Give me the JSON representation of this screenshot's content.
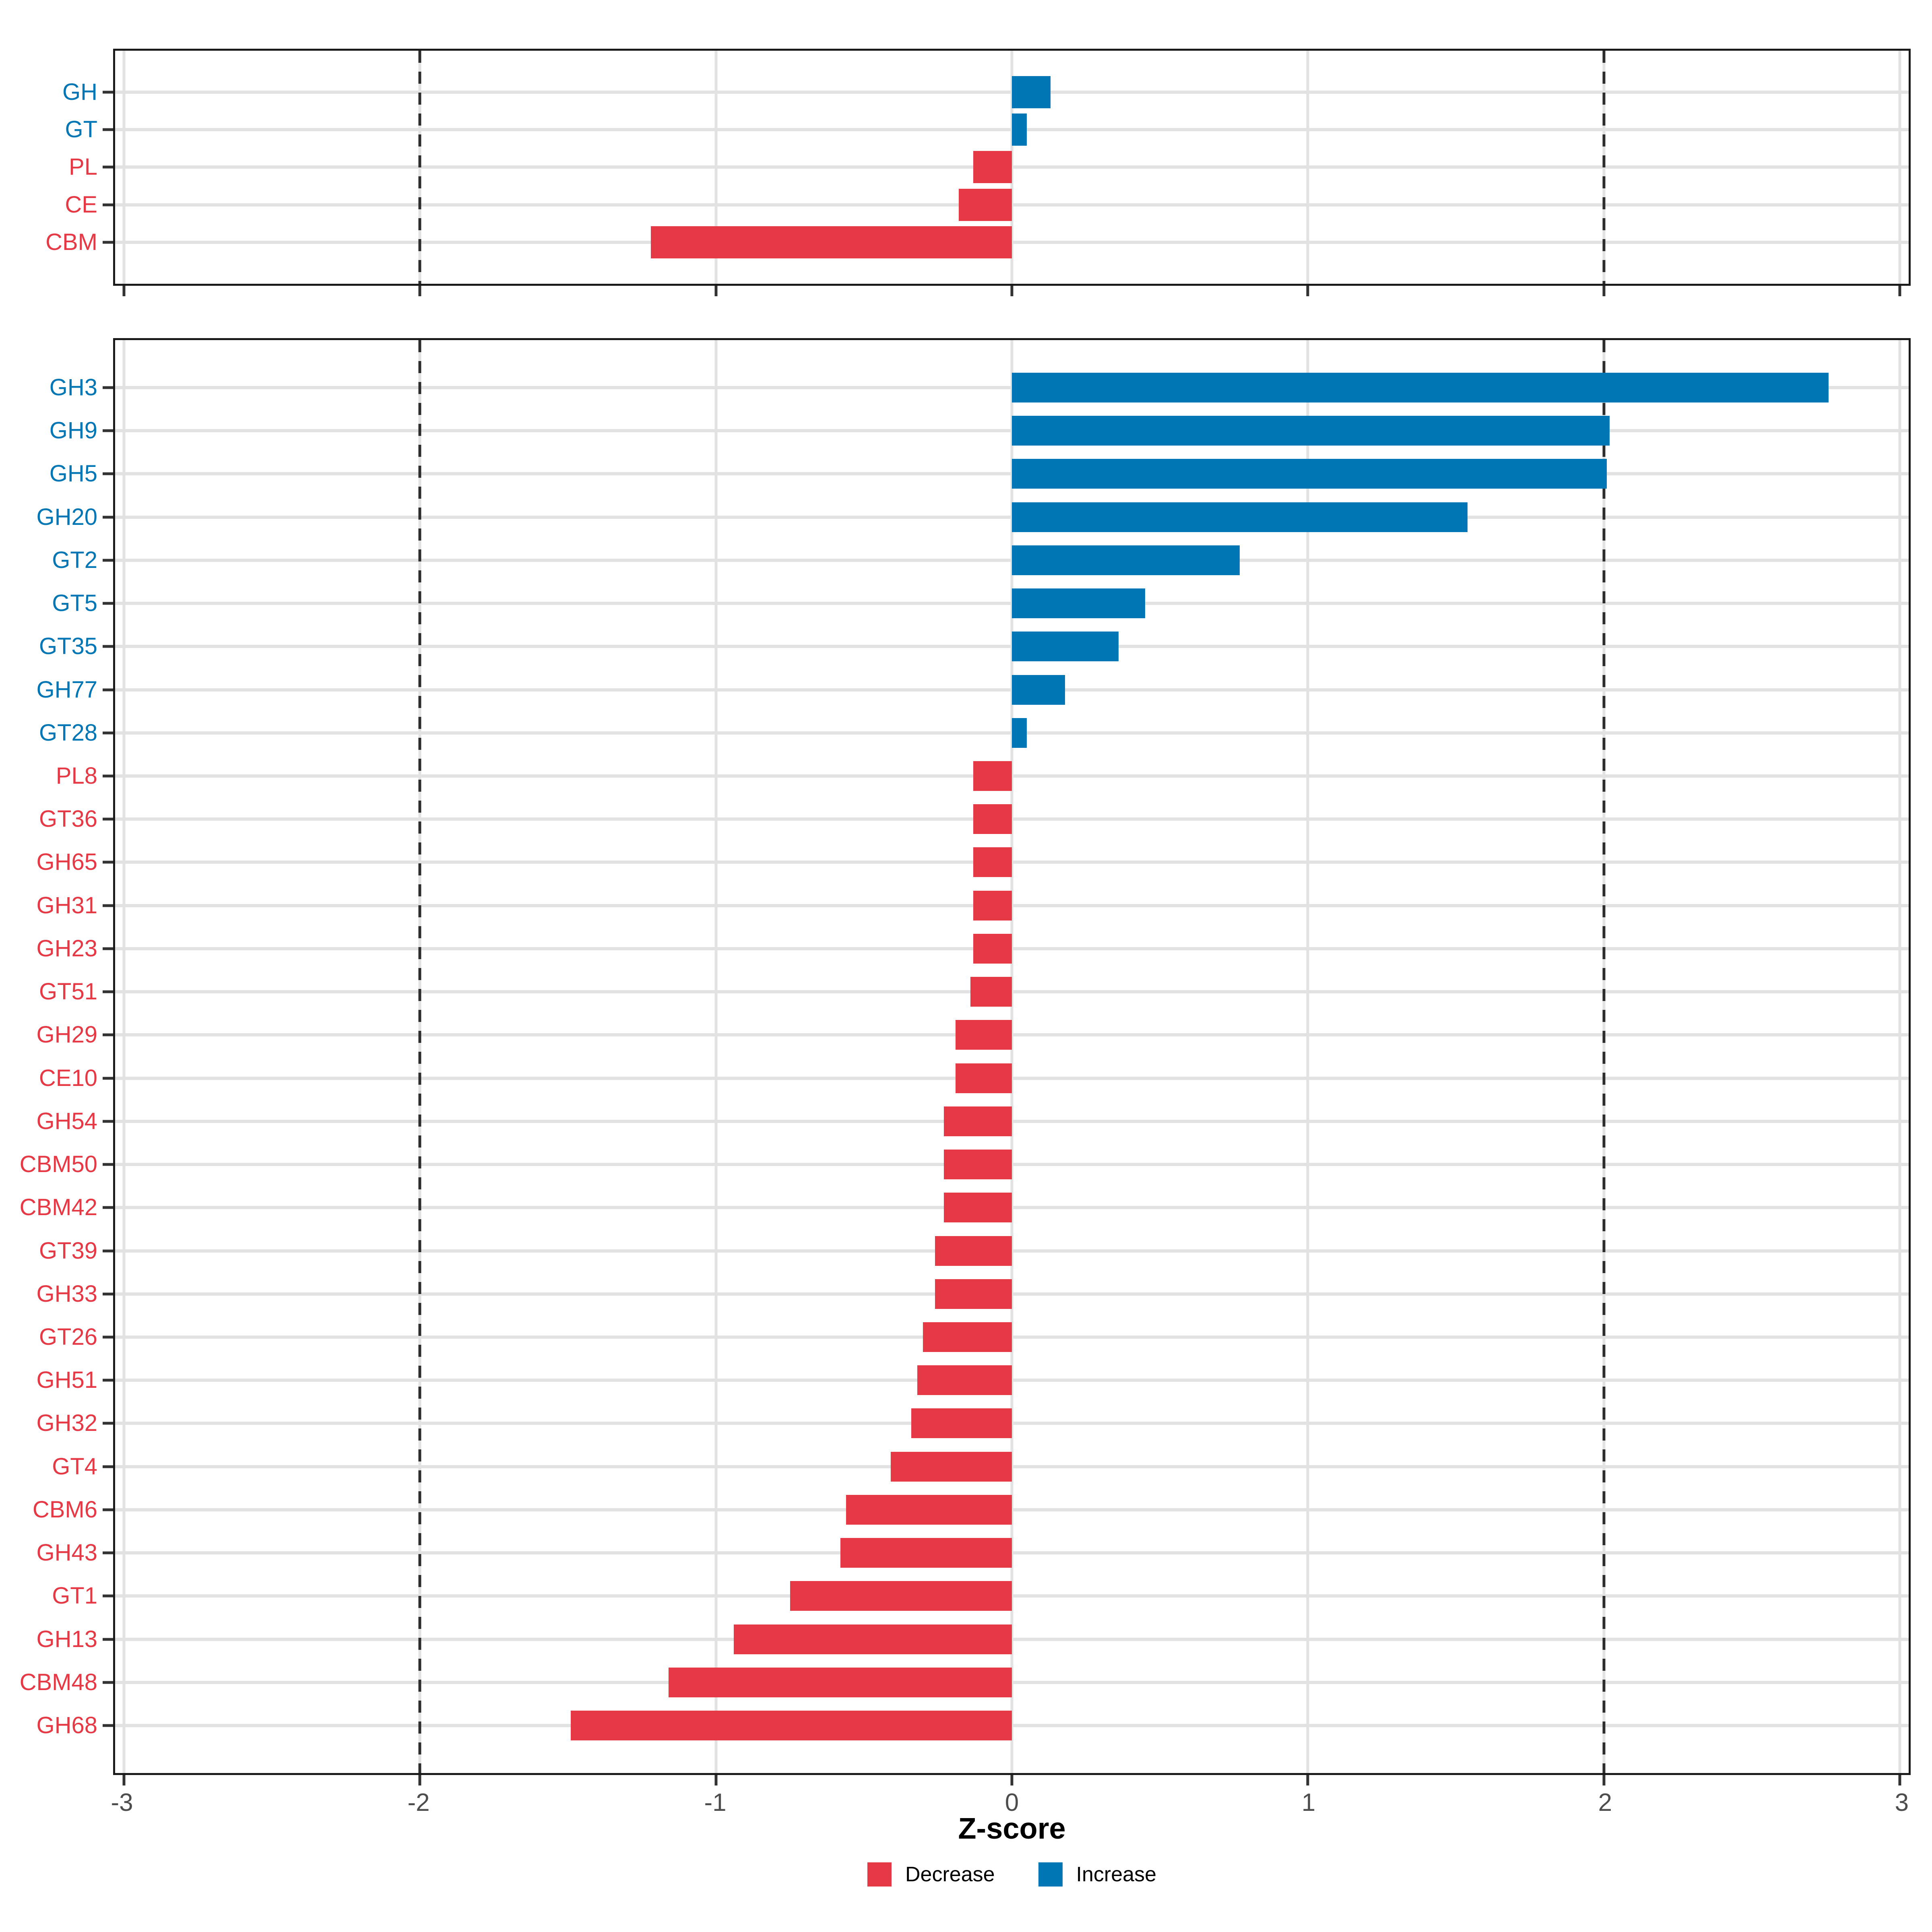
{
  "figure": {
    "background": "#ffffff",
    "increase_color": "#0076B4",
    "decrease_color": "#E63946",
    "grid_color": "#E2E2E2",
    "dashed_line_color": "#2D2D2D",
    "axis_text_color": "#4D4D4D",
    "border_color": "#1A1A1A"
  },
  "chart_data": [
    {
      "id": "cazyme-class-panel",
      "type": "bar",
      "orientation": "horizontal",
      "categories": [
        "GH",
        "GT",
        "PL",
        "CE",
        "CBM"
      ],
      "values": [
        0.13,
        0.05,
        -0.13,
        -0.18,
        -1.22
      ],
      "xlim": [
        -3.03,
        3.03
      ],
      "xticks": [
        -3,
        -2,
        -1,
        0,
        1,
        2,
        3
      ],
      "dashed_reference_lines": [
        -2,
        2
      ],
      "grid": true,
      "bar_colors_rule": "negative=decrease_color, positive=increase_color"
    },
    {
      "id": "cazyme-family-panel",
      "type": "bar",
      "orientation": "horizontal",
      "categories": [
        "GH3",
        "GH9",
        "GH5",
        "GH20",
        "GT2",
        "GT5",
        "GT35",
        "GH77",
        "GT28",
        "PL8",
        "GT36",
        "GH65",
        "GH31",
        "GH23",
        "GT51",
        "GH29",
        "CE10",
        "GH54",
        "CBM50",
        "CBM42",
        "GT39",
        "GH33",
        "GT26",
        "GH51",
        "GH32",
        "GT4",
        "CBM6",
        "GH43",
        "GT1",
        "GH13",
        "CBM48",
        "GH68"
      ],
      "values": [
        2.76,
        2.02,
        2.01,
        1.54,
        0.77,
        0.45,
        0.36,
        0.18,
        0.05,
        -0.13,
        -0.13,
        -0.13,
        -0.13,
        -0.13,
        -0.14,
        -0.19,
        -0.19,
        -0.23,
        -0.23,
        -0.23,
        -0.26,
        -0.26,
        -0.3,
        -0.32,
        -0.34,
        -0.41,
        -0.56,
        -0.58,
        -0.75,
        -0.94,
        -1.16,
        -1.49
      ],
      "xlim": [
        -3.03,
        3.03
      ],
      "xticks": [
        -3,
        -2,
        -1,
        0,
        1,
        2,
        3
      ],
      "dashed_reference_lines": [
        -2,
        2
      ],
      "grid": true,
      "xlabel": "Z-score"
    }
  ],
  "axis": {
    "xlabel": "Z-score",
    "x_tick_labels": [
      "-3",
      "-2",
      "-1",
      "0",
      "1",
      "2",
      "3"
    ]
  },
  "legend": {
    "items": [
      {
        "label": "Decrease",
        "color": "#E63946"
      },
      {
        "label": "Increase",
        "color": "#0076B4"
      }
    ]
  }
}
